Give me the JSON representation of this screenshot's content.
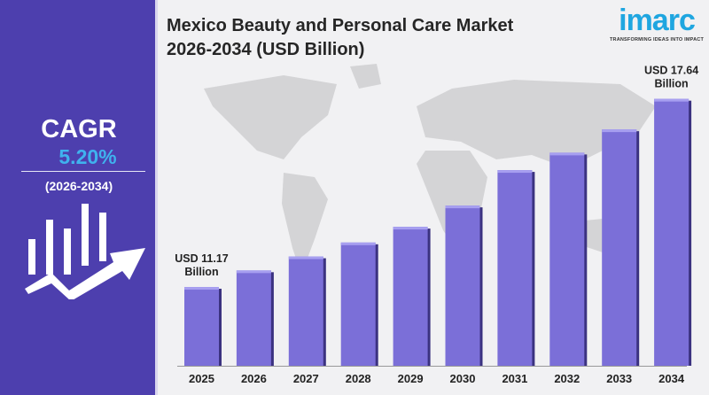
{
  "title_line1": "Mexico Beauty and Personal Care Market",
  "title_line2": "2026-2034 (USD Billion)",
  "logo": {
    "name": "imarc",
    "tagline": "TRANSFORMING IDEAS INTO IMPACT"
  },
  "cagr": {
    "label": "CAGR",
    "value": "5.20%",
    "period": "(2026-2034)"
  },
  "colors": {
    "panel": "#4d3fae",
    "bar": "#7b6fd8",
    "cagr_value": "#3fb2ee",
    "logo": "#1fa6e0"
  },
  "chart_data": {
    "type": "bar",
    "title": "Mexico Beauty and Personal Care Market 2026-2034 (USD Billion)",
    "categories": [
      "2025",
      "2026",
      "2027",
      "2028",
      "2029",
      "2030",
      "2031",
      "2032",
      "2033",
      "2034"
    ],
    "values": [
      11.17,
      11.74,
      12.22,
      12.7,
      13.24,
      13.97,
      15.19,
      15.79,
      16.59,
      17.64
    ],
    "ylim": [
      8.46,
      18.3
    ],
    "grid": false,
    "annotations": [
      {
        "category": "2025",
        "line1": "USD 11.17",
        "line2": "Billion"
      },
      {
        "category": "2034",
        "line1": "USD 17.64",
        "line2": "Billion"
      }
    ]
  }
}
